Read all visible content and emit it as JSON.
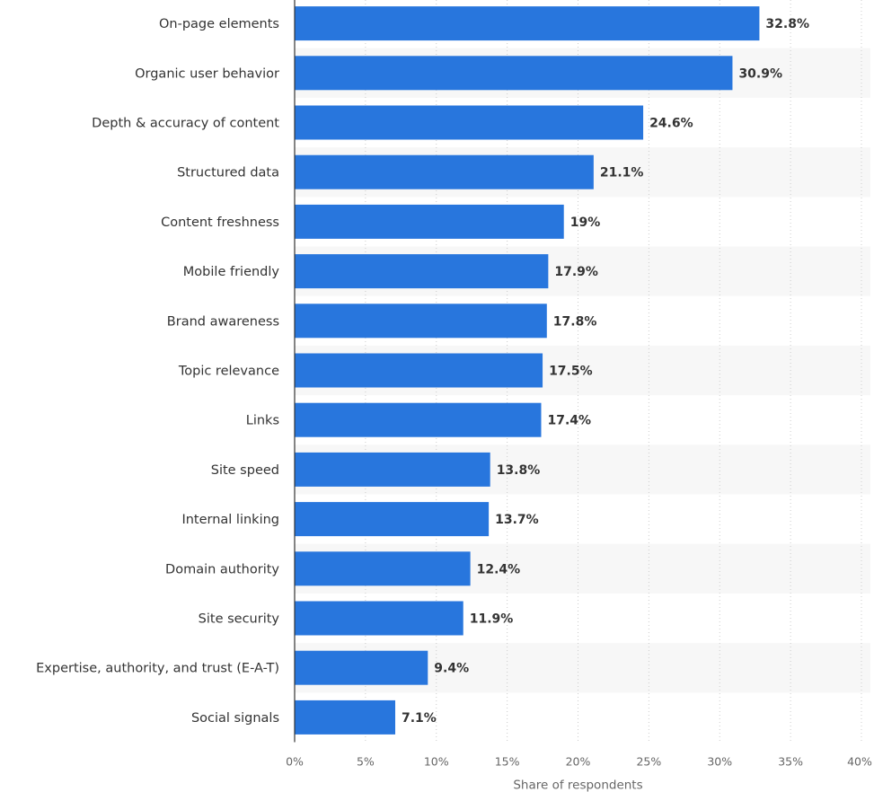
{
  "chart_data": {
    "type": "bar",
    "orientation": "horizontal",
    "categories": [
      "On-page elements",
      "Organic user behavior",
      "Depth & accuracy of content",
      "Structured data",
      "Content freshness",
      "Mobile friendly",
      "Brand awareness",
      "Topic relevance",
      "Links",
      "Site speed",
      "Internal linking",
      "Domain authority",
      "Site security",
      "Expertise, authority, and trust (E-A-T)",
      "Social signals"
    ],
    "values": [
      32.8,
      30.9,
      24.6,
      21.1,
      19,
      17.9,
      17.8,
      17.5,
      17.4,
      13.8,
      13.7,
      12.4,
      11.9,
      9.4,
      7.1
    ],
    "value_labels": [
      "32.8%",
      "30.9%",
      "24.6%",
      "21.1%",
      "19%",
      "17.9%",
      "17.8%",
      "17.5%",
      "17.4%",
      "13.8%",
      "13.7%",
      "12.4%",
      "11.9%",
      "9.4%",
      "7.1%"
    ],
    "xlabel": "Share of respondents",
    "xlim": [
      0,
      40
    ],
    "xticks": [
      0,
      5,
      10,
      15,
      20,
      25,
      30,
      35,
      40
    ],
    "xtick_labels": [
      "0%",
      "5%",
      "10%",
      "15%",
      "20%",
      "25%",
      "30%",
      "35%",
      "40%"
    ],
    "grid": "vertical dotted",
    "bar_color": "#2876dd",
    "alternate_row_color": "#f7f7f7",
    "legend": "none"
  }
}
